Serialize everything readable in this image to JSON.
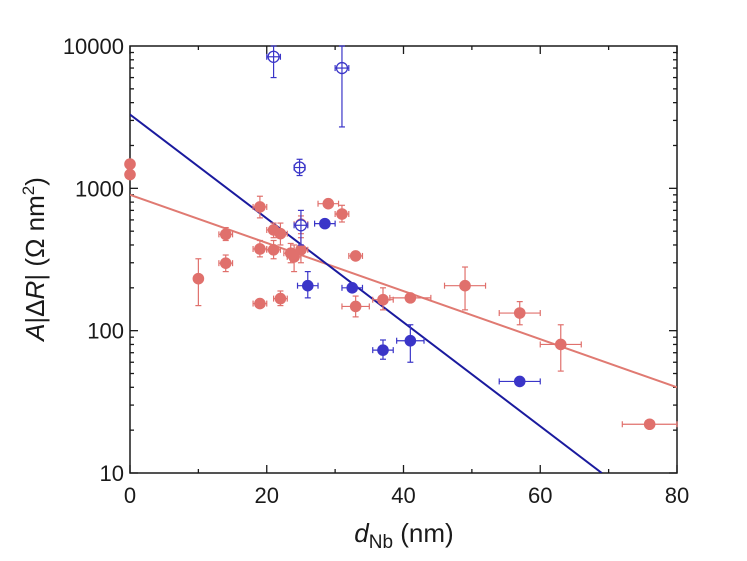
{
  "chart_data": {
    "type": "scatter",
    "xlabel": {
      "main": "d",
      "sub": "Nb",
      "unit": " (nm)"
    },
    "ylabel": {
      "italic_a": "A",
      "bar1": "|",
      "delta": "Δ",
      "italic_r": "R",
      "bar2": "|",
      "unit_open": " (Ω nm",
      "sup": "2",
      "unit_close": ")"
    },
    "xlim": [
      0,
      80
    ],
    "ylim": [
      10,
      10000
    ],
    "yscale": "log",
    "x_ticks": [
      0,
      20,
      40,
      60,
      80
    ],
    "x_tick_labels": [
      "0",
      "20",
      "40",
      "60",
      "80"
    ],
    "y_ticks": [
      10,
      100,
      1000,
      10000
    ],
    "y_tick_labels": [
      "10",
      "100",
      "1000",
      "10000"
    ],
    "colors": {
      "red": "#e0706c",
      "red_line": "#e07a72",
      "blue": "#3a35c8",
      "blue_line": "#1a1a9e",
      "axis": "#1a1a1a"
    },
    "series": [
      {
        "name": "red points",
        "color": "#e0706c",
        "marker": "filled-circle",
        "points": [
          {
            "x": 0,
            "y": 1480
          },
          {
            "x": 0,
            "y": 1250
          },
          {
            "x": 10,
            "y": 232,
            "ylo": 150,
            "yhi": 320
          },
          {
            "x": 14,
            "y": 475,
            "ylo": 430,
            "yhi": 530,
            "xlo": 13,
            "xhi": 15
          },
          {
            "x": 14,
            "y": 298,
            "ylo": 260,
            "yhi": 340,
            "xlo": 13,
            "xhi": 15
          },
          {
            "x": 19,
            "y": 740,
            "ylo": 620,
            "yhi": 880,
            "xlo": 18,
            "xhi": 20
          },
          {
            "x": 19,
            "y": 375,
            "ylo": 330,
            "yhi": 430,
            "xlo": 18,
            "xhi": 20
          },
          {
            "x": 19,
            "y": 155,
            "xlo": 18,
            "xhi": 20
          },
          {
            "x": 21,
            "y": 510,
            "ylo": 450,
            "yhi": 570,
            "xlo": 20,
            "xhi": 22
          },
          {
            "x": 21,
            "y": 370,
            "ylo": 320,
            "yhi": 430,
            "xlo": 20,
            "xhi": 22
          },
          {
            "x": 22,
            "y": 480,
            "ylo": 400,
            "yhi": 570,
            "xlo": 21,
            "xhi": 23
          },
          {
            "x": 22,
            "y": 168,
            "ylo": 150,
            "yhi": 190,
            "xlo": 21,
            "xhi": 23
          },
          {
            "x": 23.5,
            "y": 350,
            "ylo": 300,
            "yhi": 410,
            "xlo": 22.5,
            "xhi": 24.5
          },
          {
            "x": 24,
            "y": 330,
            "ylo": 260,
            "yhi": 400,
            "xlo": 23,
            "xhi": 25
          },
          {
            "x": 25,
            "y": 560,
            "ylo": 480,
            "yhi": 640,
            "xlo": 24,
            "xhi": 26
          },
          {
            "x": 25,
            "y": 370,
            "ylo": 300,
            "yhi": 450,
            "xlo": 24,
            "xhi": 26
          },
          {
            "x": 29,
            "y": 780,
            "xlo": 27.5,
            "xhi": 30.5
          },
          {
            "x": 31,
            "y": 660,
            "ylo": 580,
            "yhi": 760,
            "xlo": 30,
            "xhi": 32
          },
          {
            "x": 33,
            "y": 335,
            "xlo": 32,
            "xhi": 34
          },
          {
            "x": 33,
            "y": 148,
            "ylo": 125,
            "yhi": 175,
            "xlo": 31,
            "xhi": 35
          },
          {
            "x": 37,
            "y": 165,
            "ylo": 140,
            "yhi": 200,
            "xlo": 35.5,
            "xhi": 38.5
          },
          {
            "x": 41,
            "y": 170,
            "xlo": 38,
            "xhi": 44
          },
          {
            "x": 49,
            "y": 207,
            "ylo": 140,
            "yhi": 280,
            "xlo": 46,
            "xhi": 52
          },
          {
            "x": 57,
            "y": 133,
            "ylo": 110,
            "yhi": 160,
            "xlo": 54,
            "xhi": 60
          },
          {
            "x": 63,
            "y": 80,
            "ylo": 52,
            "yhi": 110,
            "xlo": 60,
            "xhi": 66
          },
          {
            "x": 76,
            "y": 22,
            "xlo": 72,
            "xhi": 80
          }
        ]
      },
      {
        "name": "blue filled points",
        "color": "#3a35c8",
        "marker": "filled-circle",
        "points": [
          {
            "x": 26,
            "y": 207,
            "ylo": 170,
            "yhi": 260,
            "xlo": 24.5,
            "xhi": 27.5
          },
          {
            "x": 28.5,
            "y": 565,
            "xlo": 27,
            "xhi": 30
          },
          {
            "x": 32.5,
            "y": 200,
            "xlo": 31,
            "xhi": 34
          },
          {
            "x": 37,
            "y": 73,
            "ylo": 63,
            "yhi": 86,
            "xlo": 35.5,
            "xhi": 38.5
          },
          {
            "x": 41,
            "y": 85,
            "ylo": 60,
            "yhi": 110,
            "xlo": 39,
            "xhi": 43
          },
          {
            "x": 57,
            "y": 44,
            "xlo": 54,
            "xhi": 60
          }
        ]
      },
      {
        "name": "blue open points",
        "color": "#3a35c8",
        "marker": "open-circle-cross",
        "points": [
          {
            "x": 21,
            "y": 8400,
            "ylo": 6000,
            "yhi": 10000,
            "xlo": 20,
            "xhi": 22
          },
          {
            "x": 31,
            "y": 7000,
            "ylo": 2700,
            "yhi": 10000,
            "xlo": 30,
            "xhi": 32
          },
          {
            "x": 24.8,
            "y": 1400,
            "ylo": 1230,
            "yhi": 1600,
            "xlo": 24,
            "xhi": 25.6
          },
          {
            "x": 25,
            "y": 550,
            "ylo": 400,
            "yhi": 700,
            "xlo": 24,
            "xhi": 26
          }
        ]
      }
    ],
    "fit_lines": [
      {
        "name": "red fit",
        "color": "#e07a72",
        "x0": 0,
        "y0": 900,
        "x1": 80,
        "y1": 40
      },
      {
        "name": "blue fit",
        "color": "#1a1a9e",
        "x0": 0,
        "y0": 3300,
        "x1": 69,
        "y1": 10
      }
    ]
  }
}
